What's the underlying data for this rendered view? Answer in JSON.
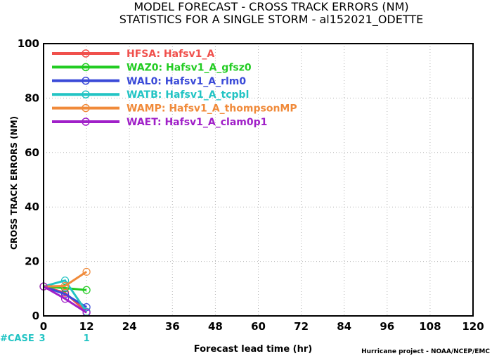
{
  "chart_data": {
    "type": "line",
    "title": "MODEL FORECAST - CROSS TRACK ERRORS (NM)",
    "subtitle": "STATISTICS FOR A SINGLE STORM - al152021_ODETTE",
    "xlabel": "Forecast lead time (hr)",
    "ylabel": "CROSS TRACK ERRORS (NM)",
    "xlim": [
      0,
      120
    ],
    "ylim": [
      0,
      100
    ],
    "xticks": [
      0,
      12,
      24,
      36,
      48,
      60,
      72,
      84,
      96,
      108,
      120
    ],
    "yticks": [
      0,
      20,
      40,
      60,
      80,
      100
    ],
    "grid": true,
    "legend_position": "top-left",
    "case_label": "#CASE",
    "case_counts": [
      {
        "x": 0,
        "count": "3"
      },
      {
        "x": 12,
        "count": "1"
      }
    ],
    "credit": "Hurricane project - NOAA/NCEP/EMC",
    "series": [
      {
        "name": "HFSA: Hafsv1_A",
        "color": "#f0504c",
        "x": [
          0,
          6,
          12
        ],
        "y": [
          10.8,
          8.5,
          1.5
        ]
      },
      {
        "name": "WAZ0: Hafsv1_A_gfsz0",
        "color": "#22cc22",
        "x": [
          0,
          6,
          12
        ],
        "y": [
          10.8,
          10.2,
          9.5
        ]
      },
      {
        "name": "WAL0: Hafsv1_A_rlm0",
        "color": "#3a4ad8",
        "x": [
          0,
          6,
          12
        ],
        "y": [
          10.8,
          8.0,
          3.2
        ]
      },
      {
        "name": "WATB: Hafsv1_A_tcpbl",
        "color": "#22c4c4",
        "x": [
          0,
          6,
          12
        ],
        "y": [
          10.8,
          13.0,
          1.5
        ]
      },
      {
        "name": "WAMP: Hafsv1_A_thompsonMP",
        "color": "#f08a3a",
        "x": [
          0,
          6,
          12
        ],
        "y": [
          10.8,
          11.0,
          16.2
        ]
      },
      {
        "name": "WAET: Hafsv1_A_clam0p1",
        "color": "#a020c8",
        "x": [
          0,
          6,
          12
        ],
        "y": [
          10.8,
          6.3,
          1.2
        ]
      }
    ]
  }
}
